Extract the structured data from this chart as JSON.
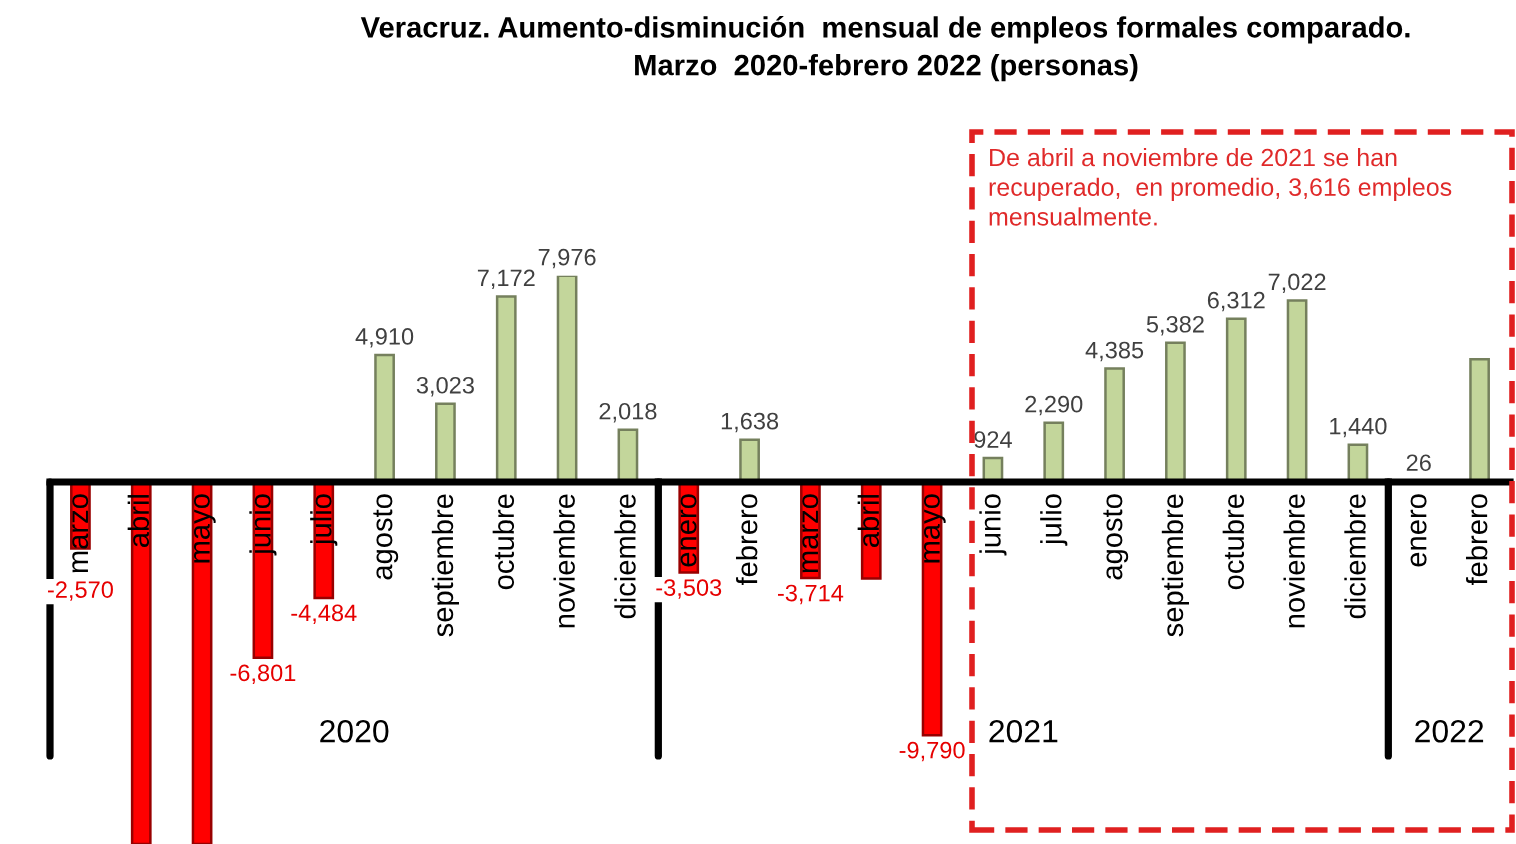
{
  "chart_data": [
    {
      "type": "bar",
      "title": "Veracruz. Aumento-disminución  mensual de empleos formales comparado.\nMarzo  2020-febrero 2022 (personas)",
      "xlabel": "2020",
      "categories": [
        "marzo",
        "abril",
        "mayo",
        "junio",
        "julio",
        "agosto",
        "septiembre",
        "octubre",
        "noviembre",
        "diciembre"
      ],
      "values": [
        -2570,
        -14000,
        -14000,
        -6801,
        -4484,
        4910,
        3023,
        7172,
        7976,
        2018
      ],
      "colors": [
        "#ff0000",
        "#ff0000",
        "#ff0000",
        "#ff0000",
        "#ff0000",
        "#c3d69b",
        "#c3d69b",
        "#c3d69b",
        "#c3d69b",
        "#c3d69b"
      ],
      "value_labels": [
        "-2,570",
        null,
        null,
        "-6,801",
        "-4,484",
        "4,910",
        "3,023",
        "7,172",
        "7,976",
        "2,018"
      ],
      "tick_labels": "x"
    },
    {
      "type": "bar",
      "xlabel": "2021",
      "categories": [
        "enero",
        "febrero",
        "marzo",
        "abril",
        "mayo",
        "junio",
        "julio",
        "agosto",
        "septiembre",
        "octubre",
        "noviembre",
        "diciembre"
      ],
      "values": [
        -3503,
        1638,
        -3714,
        -3735,
        -9790,
        924,
        2290,
        4385,
        5382,
        6312,
        7022,
        1440
      ],
      "colors": [
        "#ff0000",
        "#c3d69b",
        "#ff0000",
        "#ff0000",
        "#ff0000",
        "#c3d69b",
        "#c3d69b",
        "#c3d69b",
        "#c3d69b",
        "#c3d69b",
        "#c3d69b",
        "#c3d69b"
      ],
      "value_labels": [
        "-3,503",
        "1,638",
        "-3,714",
        null,
        "-9,790",
        "924",
        "2,290",
        "4,385",
        "5,382",
        "6,312",
        "7,022",
        "1,440"
      ],
      "tick_labels": "x",
      "annotations": [
        "De abril a noviembre de 2021 se han\nrecuperado,  en promedio, 3,616 empleos\nmensualmente."
      ]
    },
    {
      "type": "bar",
      "xlabel": "2022",
      "categories": [
        "enero",
        "febrero"
      ],
      "values": [
        26,
        4750
      ],
      "colors": [
        "#c3d69b",
        "#c3d69b"
      ],
      "value_labels": [
        "26",
        null
      ],
      "tick_labels": "x"
    }
  ]
}
